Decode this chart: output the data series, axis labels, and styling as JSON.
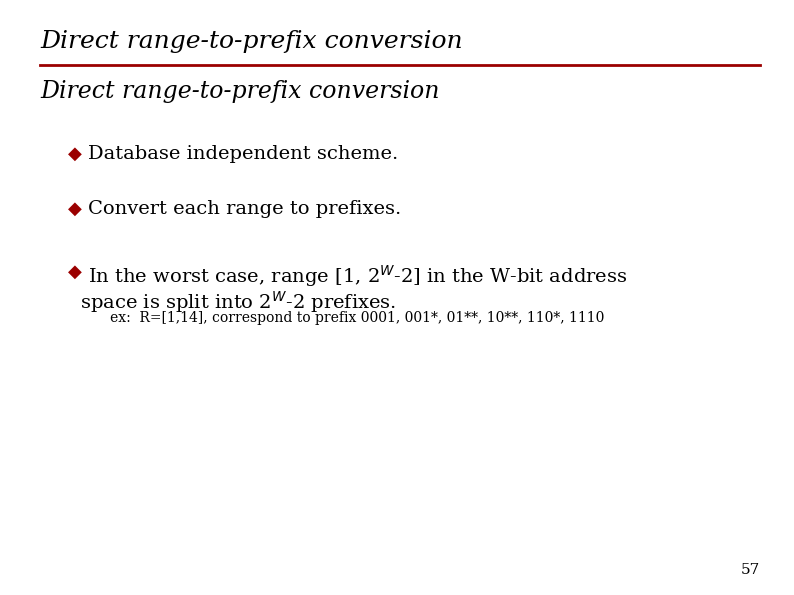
{
  "title": "Direct range-to-prefix conversion",
  "subtitle": "Direct range-to-prefix conversion",
  "bullet_color": "#9B0000",
  "title_color": "#000000",
  "subtitle_color": "#000000",
  "body_color": "#000000",
  "line_color": "#9B0000",
  "bg_color": "#FFFFFF",
  "page_number": "57",
  "example_line": "ex:  R=[1,14], correspond to prefix 0001, 001*, 01**, 10**, 110*, 1110",
  "title_fontsize": 18,
  "subtitle_fontsize": 17,
  "bullet_fontsize": 14,
  "example_fontsize": 10,
  "page_fontsize": 11
}
